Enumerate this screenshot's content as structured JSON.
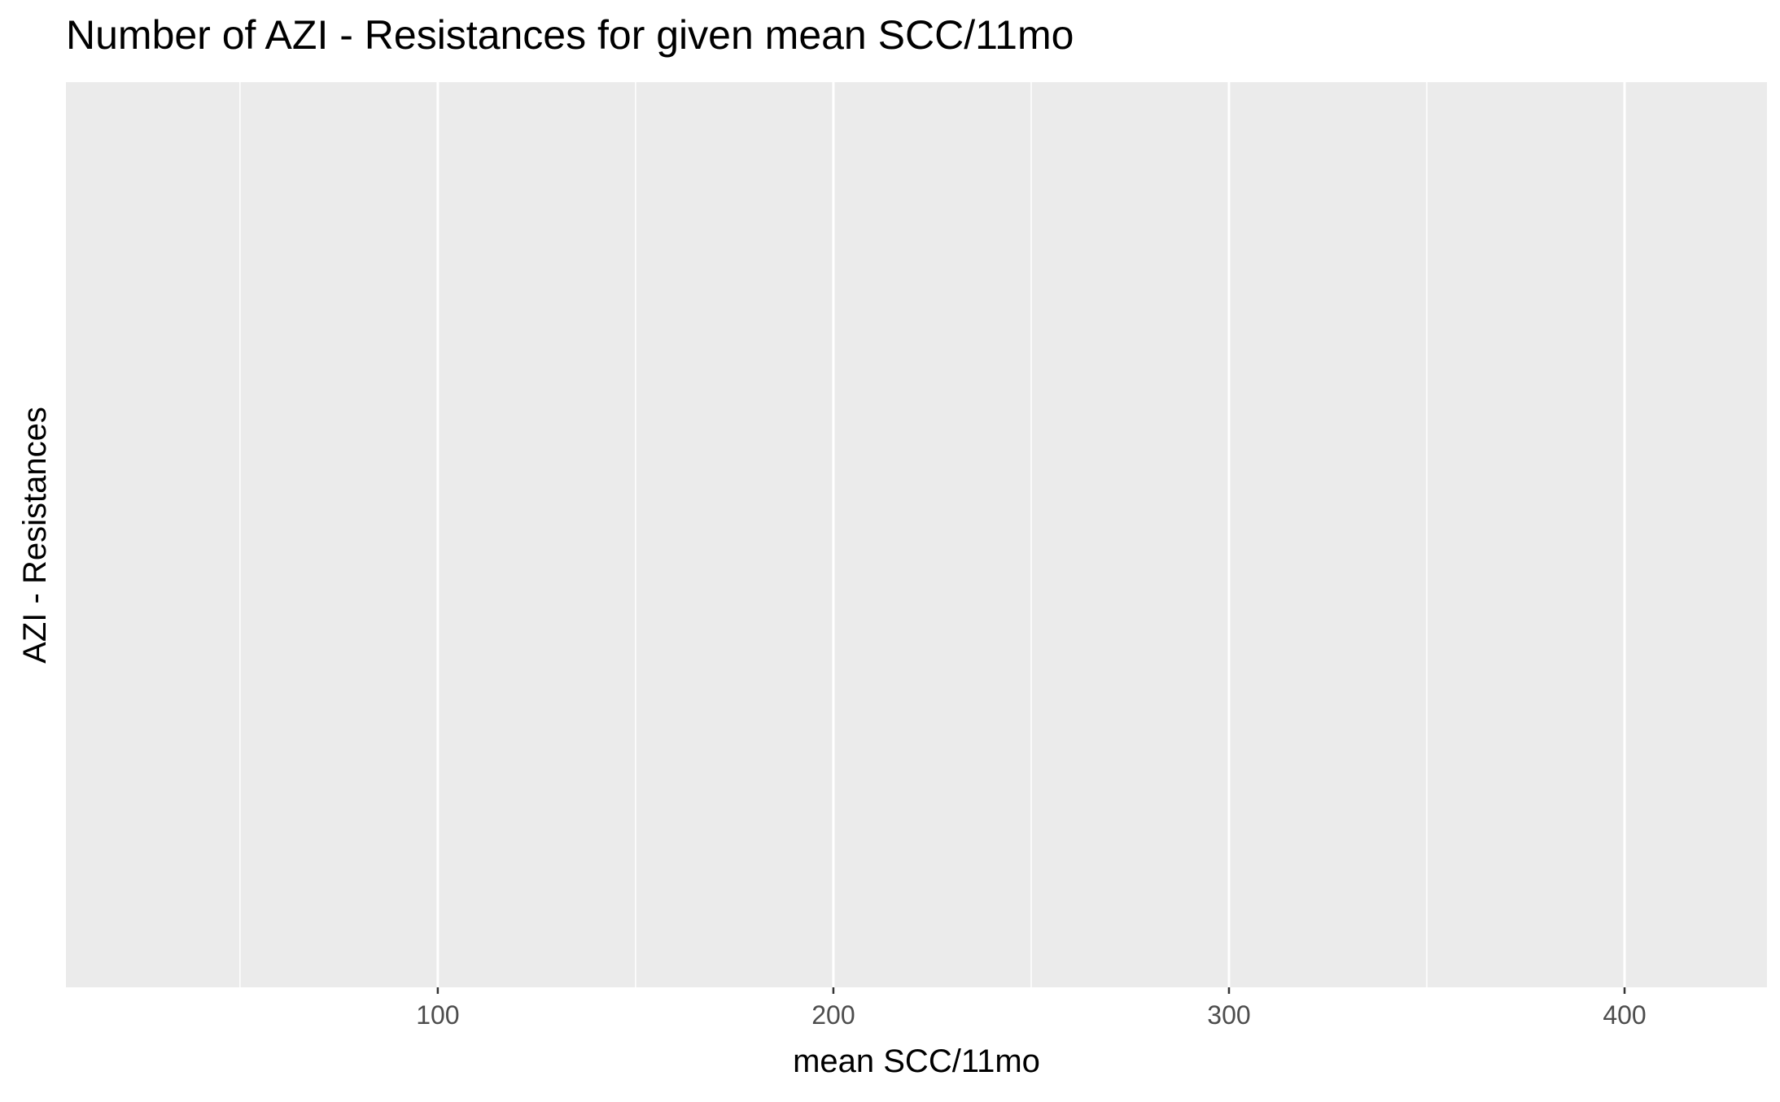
{
  "chart_data": {
    "type": "bar",
    "title": "Number of AZI - Resistances for given mean SCC/11mo",
    "xlabel": "mean SCC/11mo",
    "ylabel": "AZI - Resistances",
    "xlim": [
      6,
      436
    ],
    "x_ticks": [
      100,
      200,
      300,
      400
    ],
    "x_minor_ticks": [
      50,
      150,
      250,
      350
    ],
    "x_tick_labels": [
      "100",
      "200",
      "300",
      "400"
    ],
    "series": [],
    "grid": true,
    "legend": "none",
    "colors": {
      "panel_background": "#EBEBEB",
      "grid_line": "#FFFFFF",
      "tick_label": "#4D4D4D",
      "text": "#000000"
    }
  }
}
